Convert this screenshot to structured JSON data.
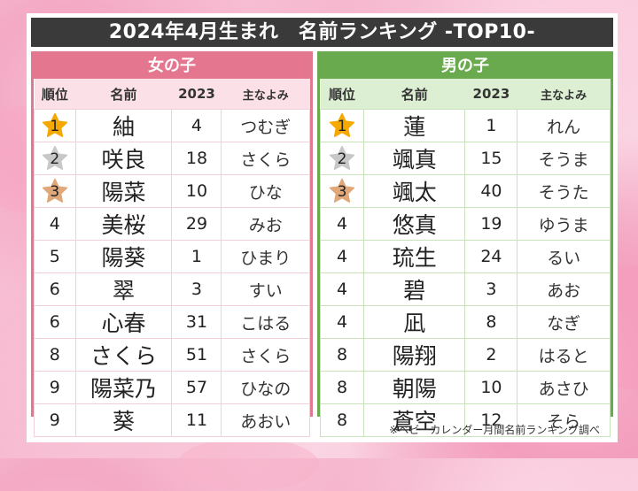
{
  "title": "2024年4月生まれ　名前ランキング -TOP10-",
  "colors": {
    "title_bg": "#3a3a3a",
    "girls_accent": "#e5768f",
    "girls_header_bg": "#fbe0e7",
    "boys_accent": "#6aaa4f",
    "boys_header_bg": "#dcefd3",
    "gold": "#f5a800",
    "silver": "#c8c8c8",
    "bronze": "#e0a878"
  },
  "columns": {
    "rank": "順位",
    "name": "名前",
    "prev": "2023",
    "reading": "主なよみ"
  },
  "girls": {
    "heading": "女の子",
    "rows": [
      {
        "rank": "1",
        "name": "紬",
        "prev": "4",
        "reading": "つむぎ",
        "medal": "gold"
      },
      {
        "rank": "2",
        "name": "咲良",
        "prev": "18",
        "reading": "さくら",
        "medal": "silver"
      },
      {
        "rank": "3",
        "name": "陽菜",
        "prev": "10",
        "reading": "ひな",
        "medal": "bronze"
      },
      {
        "rank": "4",
        "name": "美桜",
        "prev": "29",
        "reading": "みお"
      },
      {
        "rank": "5",
        "name": "陽葵",
        "prev": "1",
        "reading": "ひまり"
      },
      {
        "rank": "6",
        "name": "翠",
        "prev": "3",
        "reading": "すい"
      },
      {
        "rank": "6",
        "name": "心春",
        "prev": "31",
        "reading": "こはる"
      },
      {
        "rank": "8",
        "name": "さくら",
        "prev": "51",
        "reading": "さくら"
      },
      {
        "rank": "9",
        "name": "陽菜乃",
        "prev": "57",
        "reading": "ひなの"
      },
      {
        "rank": "9",
        "name": "葵",
        "prev": "11",
        "reading": "あおい"
      }
    ]
  },
  "boys": {
    "heading": "男の子",
    "rows": [
      {
        "rank": "1",
        "name": "蓮",
        "prev": "1",
        "reading": "れん",
        "medal": "gold"
      },
      {
        "rank": "2",
        "name": "颯真",
        "prev": "15",
        "reading": "そうま",
        "medal": "silver"
      },
      {
        "rank": "3",
        "name": "颯太",
        "prev": "40",
        "reading": "そうた",
        "medal": "bronze"
      },
      {
        "rank": "4",
        "name": "悠真",
        "prev": "19",
        "reading": "ゆうま"
      },
      {
        "rank": "4",
        "name": "琉生",
        "prev": "24",
        "reading": "るい"
      },
      {
        "rank": "4",
        "name": "碧",
        "prev": "3",
        "reading": "あお"
      },
      {
        "rank": "4",
        "name": "凪",
        "prev": "8",
        "reading": "なぎ"
      },
      {
        "rank": "8",
        "name": "陽翔",
        "prev": "2",
        "reading": "はると"
      },
      {
        "rank": "8",
        "name": "朝陽",
        "prev": "10",
        "reading": "あさひ"
      },
      {
        "rank": "8",
        "name": "蒼空",
        "prev": "12",
        "reading": "そら"
      }
    ]
  },
  "footnote": "※ベビーカレンダー月間名前ランキング調べ"
}
